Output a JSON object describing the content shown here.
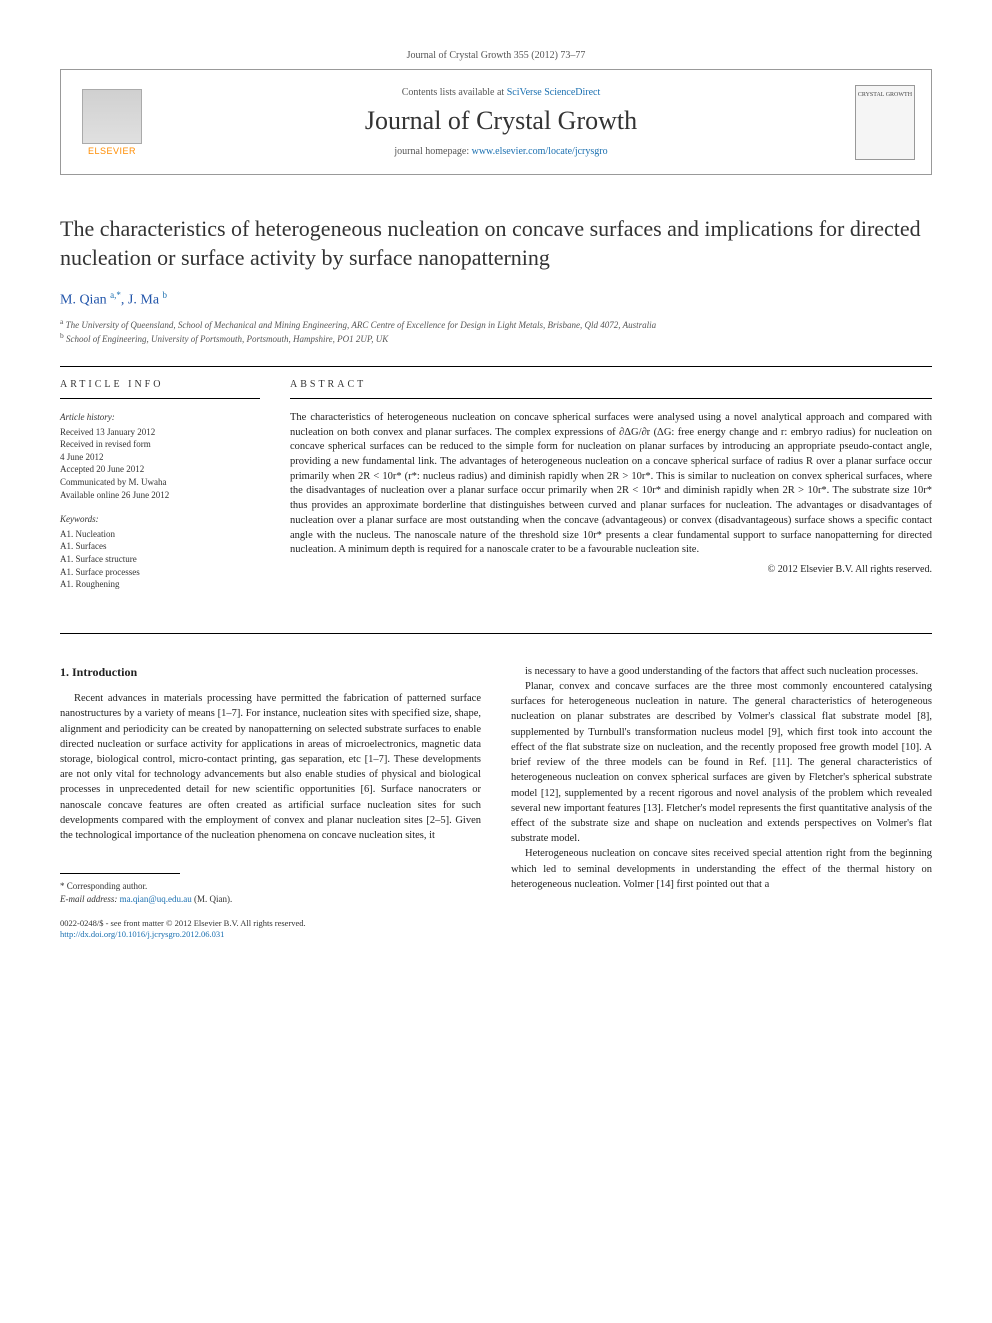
{
  "journal_ref": "Journal of Crystal Growth 355 (2012) 73–77",
  "header": {
    "elsevier_label": "ELSEVIER",
    "contents_prefix": "Contents lists available at ",
    "contents_link_text": "SciVerse ScienceDirect",
    "journal_name": "Journal of Crystal Growth",
    "homepage_prefix": "journal homepage: ",
    "homepage_link": "www.elsevier.com/locate/jcrysgro",
    "cover_text": "CRYSTAL GROWTH"
  },
  "title": "The characteristics of heterogeneous nucleation on concave surfaces and implications for directed nucleation or surface activity by surface nanopatterning",
  "authors_html": "M. Qian <sup>a,*</sup>, J. Ma <sup>b</sup>",
  "affiliations": {
    "a": "The University of Queensland, School of Mechanical and Mining Engineering, ARC Centre of Excellence for Design in Light Metals, Brisbane, Qld 4072, Australia",
    "b": "School of Engineering, University of Portsmouth, Portsmouth, Hampshire, PO1 2UP, UK"
  },
  "article_info": {
    "heading": "ARTICLE INFO",
    "history_label": "Article history:",
    "history": [
      "Received 13 January 2012",
      "Received in revised form",
      "4 June 2012",
      "Accepted 20 June 2012",
      "Communicated by M. Uwaha",
      "Available online 26 June 2012"
    ],
    "keywords_label": "Keywords:",
    "keywords": [
      "A1. Nucleation",
      "A1. Surfaces",
      "A1. Surface structure",
      "A1. Surface processes",
      "A1. Roughening"
    ]
  },
  "abstract": {
    "heading": "ABSTRACT",
    "text": "The characteristics of heterogeneous nucleation on concave spherical surfaces were analysed using a novel analytical approach and compared with nucleation on both convex and planar surfaces. The complex expressions of ∂ΔG/∂r (ΔG: free energy change and r: embryo radius) for nucleation on concave spherical surfaces can be reduced to the simple form for nucleation on planar surfaces by introducing an appropriate pseudo-contact angle, providing a new fundamental link. The advantages of heterogeneous nucleation on a concave spherical surface of radius R over a planar surface occur primarily when 2R < 10r* (r*: nucleus radius) and diminish rapidly when 2R > 10r*. This is similar to nucleation on convex spherical surfaces, where the disadvantages of nucleation over a planar surface occur primarily when 2R < 10r* and diminish rapidly when 2R > 10r*. The substrate size 10r* thus provides an approximate borderline that distinguishes between curved and planar surfaces for nucleation. The advantages or disadvantages of nucleation over a planar surface are most outstanding when the concave (advantageous) or convex (disadvantageous) surface shows a specific contact angle with the nucleus. The nanoscale nature of the threshold size 10r* presents a clear fundamental support to surface nanopatterning for directed nucleation. A minimum depth is required for a nanoscale crater to be a favourable nucleation site.",
    "copyright": "© 2012 Elsevier B.V. All rights reserved."
  },
  "body": {
    "section_number": "1.",
    "section_title": "Introduction",
    "col1_p1": "Recent advances in materials processing have permitted the fabrication of patterned surface nanostructures by a variety of means [1–7]. For instance, nucleation sites with specified size, shape, alignment and periodicity can be created by nanopatterning on selected substrate surfaces to enable directed nucleation or surface activity for applications in areas of microelectronics, magnetic data storage, biological control, micro-contact printing, gas separation, etc [1–7]. These developments are not only vital for technology advancements but also enable studies of physical and biological processes in unprecedented detail for new scientific opportunities [6]. Surface nanocraters or nanoscale concave features are often created as artificial surface nucleation sites for such developments compared with the employment of convex and planar nucleation sites [2–5]. Given the technological importance of the nucleation phenomena on concave nucleation sites, it",
    "col2_p1": "is necessary to have a good understanding of the factors that affect such nucleation processes.",
    "col2_p2": "Planar, convex and concave surfaces are the three most commonly encountered catalysing surfaces for heterogeneous nucleation in nature. The general characteristics of heterogeneous nucleation on planar substrates are described by Volmer's classical flat substrate model [8], supplemented by Turnbull's transformation nucleus model [9], which first took into account the effect of the flat substrate size on nucleation, and the recently proposed free growth model [10]. A brief review of the three models can be found in Ref. [11]. The general characteristics of heterogeneous nucleation on convex spherical surfaces are given by Fletcher's spherical substrate model [12], supplemented by a recent rigorous and novel analysis of the problem which revealed several new important features [13]. Fletcher's model represents the first quantitative analysis of the effect of the substrate size and shape on nucleation and extends perspectives on Volmer's flat substrate model.",
    "col2_p3": "Heterogeneous nucleation on concave sites received special attention right from the beginning which led to seminal developments in understanding the effect of the thermal history on heterogeneous nucleation. Volmer [14] first pointed out that a"
  },
  "footnotes": {
    "corresponding": "* Corresponding author.",
    "email_label": "E-mail address: ",
    "email": "ma.qian@uq.edu.au",
    "email_owner": " (M. Qian)."
  },
  "bottom": {
    "line1": "0022-0248/$ - see front matter © 2012 Elsevier B.V. All rights reserved.",
    "doi_url": "http://dx.doi.org/10.1016/j.jcrysgro.2012.06.031"
  }
}
